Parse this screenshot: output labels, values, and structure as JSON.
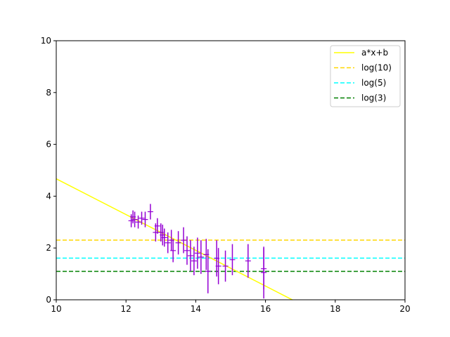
{
  "chart_data": {
    "type": "scatter",
    "title": "",
    "xlabel": "",
    "ylabel": "",
    "xlim": [
      10,
      20
    ],
    "ylim": [
      0,
      10
    ],
    "xticks": [
      "10",
      "12",
      "14",
      "16",
      "18",
      "20"
    ],
    "yticks": [
      "0",
      "2",
      "4",
      "6",
      "8",
      "10"
    ],
    "grid": false,
    "legend_position": "top-right",
    "fit_line": {
      "name": "a*x+b",
      "color": "#ffff00",
      "a": -0.69,
      "b": 11.57,
      "x_range": [
        10,
        16.77
      ]
    },
    "hlines": [
      {
        "name": "log(10)",
        "value": 2.303,
        "color": "#ffd700"
      },
      {
        "name": "log(5)",
        "value": 1.609,
        "color": "#00ffff"
      },
      {
        "name": "log(3)",
        "value": 1.099,
        "color": "#008000"
      }
    ],
    "points_color": "#9400d3",
    "points": [
      {
        "x": 12.15,
        "y": 3.05,
        "err": 0.25
      },
      {
        "x": 12.2,
        "y": 3.2,
        "err": 0.25
      },
      {
        "x": 12.25,
        "y": 3.1,
        "err": 0.3
      },
      {
        "x": 12.35,
        "y": 3.0,
        "err": 0.25
      },
      {
        "x": 12.45,
        "y": 3.15,
        "err": 0.25
      },
      {
        "x": 12.55,
        "y": 3.1,
        "err": 0.3
      },
      {
        "x": 12.7,
        "y": 3.4,
        "err": 0.3
      },
      {
        "x": 12.85,
        "y": 2.6,
        "err": 0.35
      },
      {
        "x": 12.9,
        "y": 2.85,
        "err": 0.3
      },
      {
        "x": 13.0,
        "y": 2.6,
        "err": 0.35
      },
      {
        "x": 13.05,
        "y": 2.5,
        "err": 0.4
      },
      {
        "x": 13.1,
        "y": 2.4,
        "err": 0.35
      },
      {
        "x": 13.2,
        "y": 2.2,
        "err": 0.4
      },
      {
        "x": 13.3,
        "y": 2.3,
        "err": 0.4
      },
      {
        "x": 13.35,
        "y": 1.9,
        "err": 0.45
      },
      {
        "x": 13.5,
        "y": 2.2,
        "err": 0.45
      },
      {
        "x": 13.65,
        "y": 2.3,
        "err": 0.5
      },
      {
        "x": 13.75,
        "y": 1.9,
        "err": 0.55
      },
      {
        "x": 13.85,
        "y": 1.7,
        "err": 0.6
      },
      {
        "x": 13.95,
        "y": 1.5,
        "err": 0.55
      },
      {
        "x": 14.05,
        "y": 1.8,
        "err": 0.6
      },
      {
        "x": 14.15,
        "y": 1.65,
        "err": 0.65
      },
      {
        "x": 14.3,
        "y": 1.75,
        "err": 0.6
      },
      {
        "x": 14.35,
        "y": 1.1,
        "err": 0.85
      },
      {
        "x": 14.6,
        "y": 1.6,
        "err": 0.7
      },
      {
        "x": 14.65,
        "y": 1.3,
        "err": 0.7
      },
      {
        "x": 14.85,
        "y": 1.3,
        "err": 0.6
      },
      {
        "x": 15.05,
        "y": 1.55,
        "err": 0.6
      },
      {
        "x": 15.5,
        "y": 1.5,
        "err": 0.65
      },
      {
        "x": 15.95,
        "y": 1.2,
        "err": 0.8
      },
      {
        "x": 15.95,
        "y": 1.05,
        "err": 1.0
      }
    ]
  }
}
